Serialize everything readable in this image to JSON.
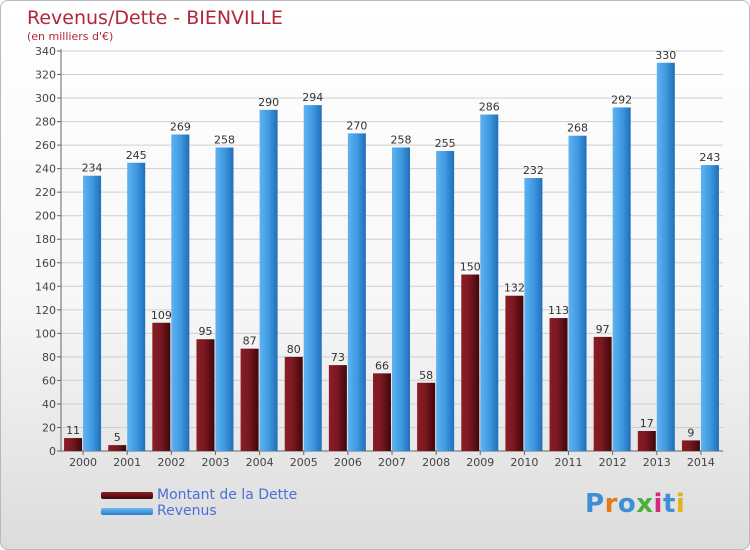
{
  "header": {
    "title": "Revenus/Dette - BIENVILLE",
    "subtitle": "(en milliers d'€)"
  },
  "legend": {
    "items": [
      {
        "label": "Montant de la Dette",
        "color": "#6b1018"
      },
      {
        "label": "Revenus",
        "color": "#3d98e0"
      }
    ]
  },
  "logo": {
    "text": "Proxiti",
    "letter_colors": [
      "#3d8fd6",
      "#e07a1a",
      "#3d8fd6",
      "#4caf3c",
      "#d42a7a",
      "#3d8fd6",
      "#e0b41a"
    ]
  },
  "chart_data": {
    "type": "bar",
    "categories": [
      "2000",
      "2001",
      "2002",
      "2003",
      "2004",
      "2005",
      "2006",
      "2007",
      "2008",
      "2009",
      "2010",
      "2011",
      "2012",
      "2013",
      "2014"
    ],
    "series": [
      {
        "name": "Montant de la Dette",
        "values": [
          11,
          5,
          109,
          95,
          87,
          80,
          73,
          66,
          58,
          150,
          132,
          113,
          97,
          17,
          9
        ],
        "color": "#6b1018"
      },
      {
        "name": "Revenus",
        "values": [
          234,
          245,
          269,
          258,
          290,
          294,
          270,
          258,
          255,
          286,
          232,
          268,
          292,
          330,
          243
        ],
        "color": "#3d98e0"
      }
    ],
    "ylim": [
      0,
      340
    ],
    "yticks": [
      0,
      20,
      40,
      60,
      80,
      100,
      120,
      140,
      160,
      180,
      200,
      220,
      240,
      260,
      280,
      300,
      320,
      340
    ],
    "grid": true
  }
}
